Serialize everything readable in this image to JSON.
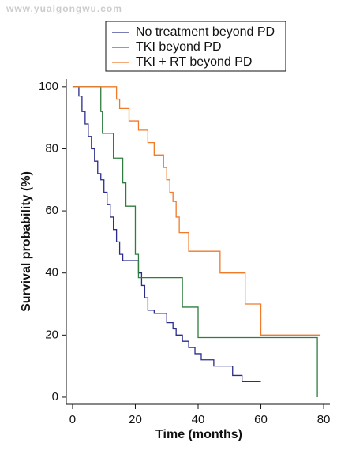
{
  "watermark": "www.yuaigongwu.com",
  "chart_data": {
    "type": "step",
    "xlabel": "Time (months)",
    "ylabel": "Survival probability (%)",
    "xlim": [
      -2,
      82
    ],
    "ylim": [
      -2.3,
      102.5
    ],
    "xticks": [
      0,
      20,
      40,
      60,
      80
    ],
    "yticks": [
      0,
      20,
      40,
      60,
      80,
      100
    ],
    "series": [
      {
        "name": "No treatment beyond PD",
        "color": "#2b2d8c",
        "x": [
          0,
          2,
          3,
          4,
          5,
          6,
          7,
          8,
          9,
          10,
          11,
          12,
          13,
          14,
          15,
          16,
          21,
          22,
          23,
          24,
          26,
          30,
          32,
          33,
          35,
          37,
          39,
          41,
          45,
          51,
          54,
          60
        ],
        "values": [
          100,
          97,
          92,
          88,
          84,
          80,
          76,
          72,
          70,
          66,
          62,
          58,
          54,
          50,
          46,
          44,
          40,
          36,
          32,
          28,
          27,
          24,
          22,
          20,
          18,
          16,
          14,
          12,
          10,
          7,
          5,
          5
        ]
      },
      {
        "name": "TKI beyond PD",
        "color": "#2e7d3e",
        "x": [
          0,
          9,
          9.5,
          13,
          16,
          17,
          20,
          21,
          35,
          40,
          78,
          78
        ],
        "values": [
          100,
          92,
          85,
          77,
          69,
          61.5,
          46,
          38.5,
          29,
          19.2,
          19.2,
          0
        ]
      },
      {
        "name": "TKI + RT beyond PD",
        "color": "#f07a2a",
        "x": [
          0,
          14,
          15,
          18,
          21,
          24,
          26,
          29,
          30,
          31,
          32,
          33,
          34,
          37,
          47,
          55,
          60,
          79
        ],
        "values": [
          100,
          96,
          93,
          89,
          86,
          82,
          78,
          74,
          70,
          66,
          63,
          58,
          53,
          47,
          40,
          30,
          20,
          20
        ]
      }
    ]
  }
}
